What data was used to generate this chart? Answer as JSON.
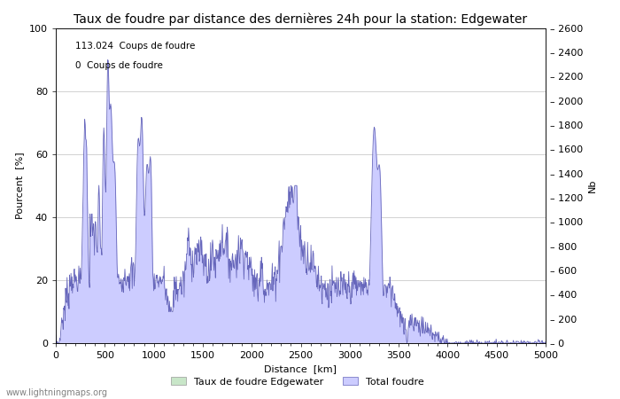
{
  "title": "Taux de foudre par distance des dernières 24h pour la station: Edgewater",
  "xlabel": "Distance  [km]",
  "ylabel_left": "Pourcent  [%]",
  "ylabel_right": "Nb",
  "annotation1": "113.024  Coups de foudre",
  "annotation2": "0  Coups de foudre",
  "legend1": "Taux de foudre Edgewater",
  "legend2": "Total foudre",
  "watermark": "www.lightningmaps.org",
  "xlim": [
    0,
    5000
  ],
  "ylim_left": [
    0,
    100
  ],
  "ylim_right": [
    0,
    2600
  ],
  "yticks_left": [
    0,
    20,
    40,
    60,
    80,
    100
  ],
  "yticks_right": [
    0,
    200,
    400,
    600,
    800,
    1000,
    1200,
    1400,
    1600,
    1800,
    2000,
    2200,
    2400,
    2600
  ],
  "xticks": [
    0,
    500,
    1000,
    1500,
    2000,
    2500,
    3000,
    3500,
    4000,
    4500,
    5000
  ],
  "fill_color": "#ccccff",
  "line_color": "#6666bb",
  "green_fill_color": "#c8e6c8",
  "background_color": "#ffffff",
  "grid_color": "#c0c0c0",
  "title_fontsize": 10,
  "label_fontsize": 8,
  "tick_fontsize": 8
}
